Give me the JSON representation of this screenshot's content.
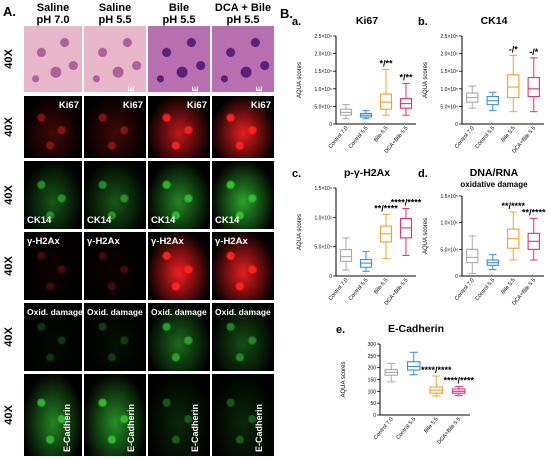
{
  "panel_a": {
    "letter": "A.",
    "columns": [
      {
        "line1": "Saline",
        "line2": "pH 7.0"
      },
      {
        "line1": "Saline",
        "line2": "pH 5.5"
      },
      {
        "line1": "Bile",
        "line2": "pH 5.5"
      },
      {
        "line1": "DCA + Bile",
        "line2": "pH 5.5"
      }
    ],
    "magnification": "40X",
    "rows": [
      {
        "stain": "H&E",
        "labels": [
          "",
          "H&E",
          "H&E",
          "H&E"
        ],
        "color": "#d98ab0"
      },
      {
        "stain": "Ki67",
        "labels": [
          "Ki67",
          "Ki67",
          "Ki67",
          "Ki67"
        ],
        "color": "#ff2020"
      },
      {
        "stain": "CK14",
        "labels": [
          "CK14",
          "CK14",
          "CK14",
          "CK14"
        ],
        "color": "#30c030"
      },
      {
        "stain": "γ-H2Ax",
        "labels": [
          "γ-H2Ax",
          "γ-H2Ax",
          "γ-H2Ax",
          "γ-H2Ax"
        ],
        "color": "#ff2020"
      },
      {
        "stain": "Oxid. damage",
        "labels": [
          "Oxid. damage",
          "Oxid. damage",
          "Oxid. damage",
          "Oxid. damage"
        ],
        "color": "#30c030"
      },
      {
        "stain": "E-Cadherin",
        "labels": [
          "E-Cadherin",
          "E-Cadherin",
          "E-Cadherin",
          "E-Cadherin"
        ],
        "color": "#30c030"
      }
    ],
    "intensity": [
      [
        0.9,
        0.85,
        0.95,
        0.95
      ],
      [
        0.25,
        0.25,
        0.75,
        0.9
      ],
      [
        0.45,
        0.45,
        0.7,
        0.85
      ],
      [
        0.05,
        0.05,
        0.95,
        0.9
      ],
      [
        0.05,
        0.08,
        0.55,
        0.4
      ],
      [
        0.7,
        0.75,
        0.2,
        0.2
      ]
    ]
  },
  "panel_b": {
    "letter": "B.",
    "box_colors": [
      "#a8a8a8",
      "#3a8fd8",
      "#f0a030",
      "#e0307a"
    ]
  },
  "chart_data": [
    {
      "type": "box",
      "letter": "a.",
      "title": "Ki67",
      "subtitle": "",
      "ylabel": "AQUA scores",
      "categories": [
        "Control 7.0",
        "Control 5.5",
        "Bile 5.5",
        "DCA+Bile 5.5"
      ],
      "yticks": [
        "0",
        "5.0×10⁴",
        "1.0×10⁵",
        "1.5×10⁵",
        "2.0×10⁵",
        "2.5×10⁵"
      ],
      "ylim": [
        0,
        250000
      ],
      "boxes": [
        {
          "min": 15000,
          "q1": 25000,
          "median": 33000,
          "q3": 42000,
          "max": 55000
        },
        {
          "min": 15000,
          "q1": 20000,
          "median": 25000,
          "q3": 30000,
          "max": 38000
        },
        {
          "min": 25000,
          "q1": 42000,
          "median": 62000,
          "q3": 85000,
          "max": 155000
        },
        {
          "min": 25000,
          "q1": 45000,
          "median": 58000,
          "q3": 72000,
          "max": 115000
        }
      ],
      "annotations": [
        "",
        "",
        "*/**",
        "*/**"
      ]
    },
    {
      "type": "box",
      "letter": "b.",
      "title": "CK14",
      "subtitle": "",
      "ylabel": "AQUA scores",
      "categories": [
        "Control 7.0",
        "Control 5.5",
        "Bile 5.5",
        "DCA+Bile 5.5"
      ],
      "yticks": [
        "0",
        "5.0×10⁴",
        "1.0×10⁵",
        "1.5×10⁵",
        "2.0×10⁵",
        "2.5×10⁵"
      ],
      "ylim": [
        0,
        250000
      ],
      "boxes": [
        {
          "min": 45000,
          "q1": 62000,
          "median": 75000,
          "q3": 88000,
          "max": 108000
        },
        {
          "min": 38000,
          "q1": 55000,
          "median": 66000,
          "q3": 78000,
          "max": 90000
        },
        {
          "min": 35000,
          "q1": 75000,
          "median": 105000,
          "q3": 140000,
          "max": 195000
        },
        {
          "min": 35000,
          "q1": 78000,
          "median": 100000,
          "q3": 132000,
          "max": 188000
        }
      ],
      "annotations": [
        "",
        "",
        "-/*",
        "-/*"
      ]
    },
    {
      "type": "box",
      "letter": "c.",
      "title": "p-γ-H2Ax",
      "subtitle": "",
      "ylabel": "AQUA scores",
      "categories": [
        "Control 7.0",
        "Control 5.5",
        "Bile 5.5",
        "DCA+Bile 5.5"
      ],
      "yticks": [
        "0",
        "5.0×10⁴",
        "1.0×10⁵",
        "1.5×10⁵"
      ],
      "ylim": [
        0,
        150000
      ],
      "boxes": [
        {
          "min": 10000,
          "q1": 25000,
          "median": 33000,
          "q3": 45000,
          "max": 65000
        },
        {
          "min": 8000,
          "q1": 15000,
          "median": 22000,
          "q3": 28000,
          "max": 42000
        },
        {
          "min": 30000,
          "q1": 58000,
          "median": 72000,
          "q3": 85000,
          "max": 105000
        },
        {
          "min": 35000,
          "q1": 65000,
          "median": 82000,
          "q3": 98000,
          "max": 115000
        }
      ],
      "annotations": [
        "",
        "",
        "**/****",
        "****/****"
      ]
    },
    {
      "type": "box",
      "letter": "d.",
      "title": "DNA/RNA",
      "subtitle": "oxidative damage",
      "ylabel": "AQUA scores",
      "categories": [
        "Control 7.0",
        "Control 5.5",
        "Bile 5.5",
        "DCA+Bile 5.5"
      ],
      "yticks": [
        "0",
        "5.0×10⁴",
        "1.0×10⁵",
        "1.5×10⁵"
      ],
      "ylim": [
        0,
        150000
      ],
      "boxes": [
        {
          "min": 5000,
          "q1": 25000,
          "median": 35000,
          "q3": 50000,
          "max": 75000
        },
        {
          "min": 12000,
          "q1": 20000,
          "median": 25000,
          "q3": 30000,
          "max": 40000
        },
        {
          "min": 30000,
          "q1": 52000,
          "median": 70000,
          "q3": 88000,
          "max": 120000
        },
        {
          "min": 30000,
          "q1": 50000,
          "median": 65000,
          "q3": 80000,
          "max": 108000
        }
      ],
      "annotations": [
        "",
        "",
        "**/****",
        "**/****"
      ]
    },
    {
      "type": "box",
      "letter": "e.",
      "title": "E-Cadherin",
      "subtitle": "",
      "ylabel": "AQUA scores",
      "categories": [
        "Control 7.0",
        "Control 5.5",
        "Bile 5.5",
        "DCA+Bile 5.5"
      ],
      "yticks": [
        "0",
        "50",
        "100",
        "150",
        "200",
        "250",
        "300"
      ],
      "ylim": [
        0,
        300
      ],
      "boxes": [
        {
          "min": 140,
          "q1": 168,
          "median": 180,
          "q3": 192,
          "max": 218
        },
        {
          "min": 170,
          "q1": 190,
          "median": 205,
          "q3": 225,
          "max": 265
        },
        {
          "min": 80,
          "q1": 92,
          "median": 105,
          "q3": 118,
          "max": 165
        },
        {
          "min": 82,
          "q1": 92,
          "median": 100,
          "q3": 110,
          "max": 120
        }
      ],
      "annotations": [
        "",
        "",
        "****/****",
        "****/****"
      ]
    }
  ]
}
